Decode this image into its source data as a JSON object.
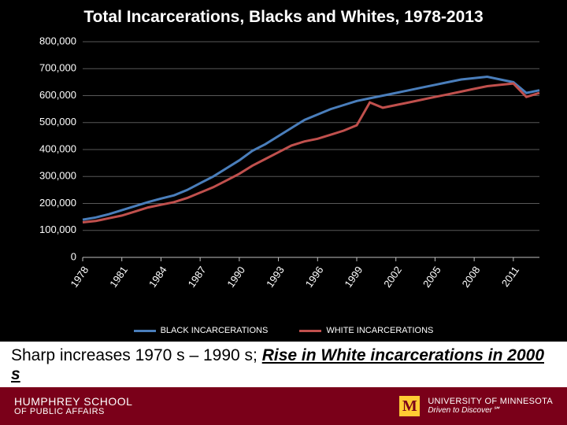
{
  "title": "Total Incarcerations, Blacks and Whites, 1978-2013",
  "chart": {
    "type": "line",
    "background_color": "#000000",
    "grid_color": "#595959",
    "axis_color": "#bfbfbf",
    "text_color": "#ffffff",
    "title_fontsize": 21,
    "tick_fontsize": 13,
    "ylim": [
      0,
      800000
    ],
    "ytick_step": 100000,
    "yticks": [
      "0",
      "100,000",
      "200,000",
      "300,000",
      "400,000",
      "500,000",
      "600,000",
      "700,000",
      "800,000"
    ],
    "x_categories": [
      "1978",
      "1981",
      "1984",
      "1987",
      "1990",
      "1993",
      "1996",
      "1999",
      "2002",
      "2005",
      "2008",
      "2011"
    ],
    "years": [
      1978,
      1979,
      1980,
      1981,
      1982,
      1983,
      1984,
      1985,
      1986,
      1987,
      1988,
      1989,
      1990,
      1991,
      1992,
      1993,
      1994,
      1995,
      1996,
      1997,
      1998,
      1999,
      2000,
      2001,
      2002,
      2003,
      2004,
      2005,
      2006,
      2007,
      2008,
      2009,
      2010,
      2011,
      2012,
      2013
    ],
    "series": [
      {
        "name": "BLACK INCARCERATIONS",
        "color": "#4a7ebb",
        "line_width": 3,
        "values": [
          140000,
          148000,
          160000,
          175000,
          190000,
          205000,
          218000,
          230000,
          250000,
          275000,
          300000,
          330000,
          360000,
          395000,
          420000,
          450000,
          480000,
          510000,
          530000,
          550000,
          565000,
          580000,
          590000,
          600000,
          610000,
          620000,
          630000,
          640000,
          650000,
          660000,
          665000,
          670000,
          660000,
          650000,
          610000,
          620000
        ]
      },
      {
        "name": "WHITE INCARCERATIONS",
        "color": "#c0504d",
        "line_width": 3,
        "values": [
          130000,
          135000,
          145000,
          155000,
          170000,
          185000,
          195000,
          205000,
          220000,
          240000,
          260000,
          285000,
          310000,
          340000,
          365000,
          390000,
          415000,
          430000,
          440000,
          455000,
          470000,
          490000,
          575000,
          555000,
          565000,
          575000,
          585000,
          595000,
          605000,
          615000,
          625000,
          635000,
          640000,
          645000,
          595000,
          610000
        ]
      }
    ],
    "legend_fontsize": 11
  },
  "caption": {
    "plain": "Sharp increases 1970 s – 1990 s; ",
    "emph": "Rise in White incarcerations in 2000 s",
    "fontsize": 21,
    "background": "#ffffff"
  },
  "footer": {
    "background": "#7a0019",
    "left_line1": "HUMPHREY SCHOOL",
    "left_line2": "OF PUBLIC AFFAIRS",
    "logo_letter": "M",
    "logo_bg": "#ffcc33",
    "logo_fg": "#7a0019",
    "right_line1": "UNIVERSITY OF MINNESOTA",
    "right_line2": "Driven to Discover℠"
  }
}
